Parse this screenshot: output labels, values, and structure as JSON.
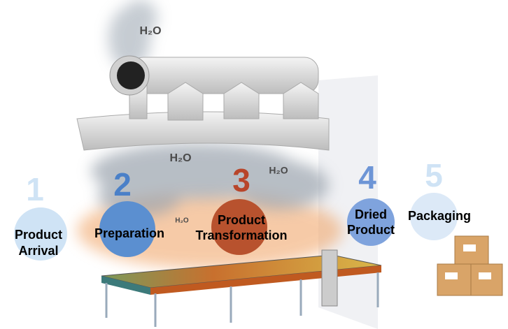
{
  "vapor_labels": [
    "H₂O",
    "H₂O",
    "H₂O",
    "H₂O"
  ],
  "steps": [
    {
      "number": 1,
      "label": [
        "Product",
        "Arrival"
      ]
    },
    {
      "number": 2,
      "label": [
        "Preparation"
      ]
    },
    {
      "number": 3,
      "label": [
        "Product",
        "Transformation"
      ]
    },
    {
      "number": 4,
      "label": [
        "Dried",
        "Product"
      ]
    },
    {
      "number": 5,
      "label": [
        "Packaging"
      ]
    }
  ]
}
